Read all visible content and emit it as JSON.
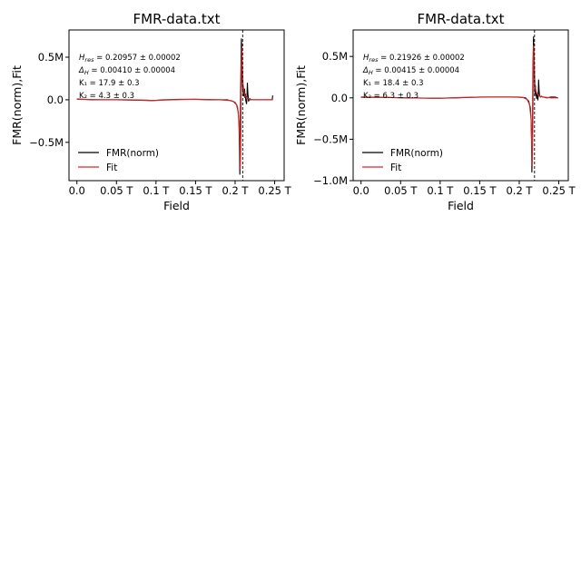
{
  "chart_data": [
    {
      "type": "line",
      "title": "FMR-data.txt",
      "xlabel": "Field",
      "ylabel": "FMR(norm),Fit",
      "xlim": [
        -0.01,
        0.262
      ],
      "ylim": [
        -0.95,
        0.82
      ],
      "x_ticks": [
        0.0,
        0.05,
        0.1,
        0.15,
        0.2,
        0.25
      ],
      "x_tick_labels": [
        "0.0",
        "0.05 T",
        "0.1 T",
        "0.15 T",
        "0.2 T",
        "0.25 T"
      ],
      "y_ticks": [
        0.5,
        0.0,
        -0.5
      ],
      "y_tick_labels": [
        "0.5M",
        "0.0",
        "−0.5M"
      ],
      "vline_x": 0.2096,
      "annotations": [
        "H_res = 0.20957 ± 0.00002",
        "Δ_H = 0.00410 ± 0.00004",
        "K₁ = 17.9 ± 0.3",
        "K₂ = 4.3 ± 0.3"
      ],
      "legend": {
        "placement": "lower-left",
        "entries": [
          "FMR(norm)",
          "Fit"
        ]
      },
      "series": [
        {
          "name": "FMR(norm)",
          "color": "#000000",
          "x": [
            0.0,
            0.02,
            0.05,
            0.08,
            0.095,
            0.11,
            0.13,
            0.15,
            0.17,
            0.19,
            0.198,
            0.202,
            0.204,
            0.205,
            0.2055,
            0.206,
            0.2065,
            0.207,
            0.2075,
            0.208,
            0.2085,
            0.209,
            0.2095,
            0.21,
            0.2105,
            0.211,
            0.212,
            0.2125,
            0.213,
            0.2135,
            0.214,
            0.2145,
            0.215,
            0.2155,
            0.216,
            0.2165,
            0.217,
            0.2175,
            0.218,
            0.2185,
            0.219,
            0.22,
            0.222,
            0.225,
            0.23,
            0.235,
            0.24,
            0.245,
            0.247,
            0.2475
          ],
          "y": [
            0.01,
            0.0,
            0.0,
            -0.005,
            -0.01,
            0.0,
            0.005,
            0.005,
            0.0,
            0.0,
            -0.02,
            -0.06,
            -0.15,
            -0.3,
            -0.6,
            -0.88,
            -0.45,
            0.1,
            0.45,
            0.72,
            0.55,
            0.3,
            0.15,
            0.08,
            0.1,
            0.04,
            0.13,
            0.02,
            0.07,
            -0.01,
            -0.03,
            -0.05,
            0.02,
            0.2,
            0.1,
            0.03,
            -0.02,
            0.01,
            0.0,
            0.0,
            0.01,
            0.0,
            0.0,
            0.0,
            0.0,
            0.0,
            0.0,
            0.0,
            0.0,
            0.05
          ]
        },
        {
          "name": "Fit",
          "color": "#d62728",
          "x": [
            0.0,
            0.03,
            0.06,
            0.09,
            0.095,
            0.12,
            0.15,
            0.18,
            0.195,
            0.2,
            0.203,
            0.205,
            0.206,
            0.2065,
            0.207,
            0.2075,
            0.208,
            0.2085,
            0.209,
            0.2095,
            0.21,
            0.211,
            0.212,
            0.214,
            0.216,
            0.22,
            0.23,
            0.24,
            0.247
          ],
          "y": [
            0.005,
            0.0,
            0.0,
            -0.005,
            -0.01,
            0.0,
            0.005,
            0.0,
            -0.01,
            -0.03,
            -0.08,
            -0.25,
            -0.55,
            -0.82,
            -0.6,
            -0.1,
            0.4,
            0.62,
            0.5,
            0.3,
            0.18,
            0.1,
            0.06,
            0.03,
            0.015,
            0.0,
            0.0,
            0.0,
            0.0
          ]
        }
      ]
    },
    {
      "type": "line",
      "title": "FMR-data.txt",
      "xlabel": "Field",
      "ylabel": "FMR(norm),Fit",
      "xlim": [
        -0.01,
        0.262
      ],
      "ylim": [
        -1.0,
        0.82
      ],
      "x_ticks": [
        0.0,
        0.05,
        0.1,
        0.15,
        0.2,
        0.25
      ],
      "x_tick_labels": [
        "0.0",
        "0.05 T",
        "0.1 T",
        "0.15 T",
        "0.2 T",
        "0.25 T"
      ],
      "y_ticks": [
        0.5,
        0.0,
        -0.5,
        -1.0
      ],
      "y_tick_labels": [
        "0.5M",
        "0.0",
        "−0.5M",
        "−1.0M"
      ],
      "vline_x": 0.2193,
      "annotations": [
        "H_res = 0.21926 ± 0.00002",
        "Δ_H = 0.00415 ± 0.00004",
        "K₁ = 18.4 ± 0.3",
        "K₂ = 6.3 ± 0.3"
      ],
      "legend": {
        "placement": "lower-left",
        "entries": [
          "FMR(norm)",
          "Fit"
        ]
      },
      "series": [
        {
          "name": "FMR(norm)",
          "color": "#000000",
          "x": [
            0.0,
            0.03,
            0.06,
            0.09,
            0.1,
            0.12,
            0.15,
            0.18,
            0.2,
            0.208,
            0.212,
            0.214,
            0.215,
            0.2155,
            0.216,
            0.2165,
            0.217,
            0.2175,
            0.218,
            0.2185,
            0.219,
            0.2195,
            0.22,
            0.2205,
            0.221,
            0.2215,
            0.222,
            0.2225,
            0.223,
            0.2235,
            0.224,
            0.2245,
            0.225,
            0.2255,
            0.226,
            0.227,
            0.228,
            0.23,
            0.235,
            0.24,
            0.245,
            0.249
          ],
          "y": [
            0.01,
            0.005,
            0.0,
            -0.005,
            -0.005,
            0.0,
            0.01,
            0.01,
            0.01,
            0.0,
            -0.04,
            -0.12,
            -0.25,
            -0.5,
            -0.9,
            -0.6,
            0.0,
            0.45,
            0.74,
            0.55,
            0.3,
            0.12,
            0.04,
            0.15,
            0.02,
            0.05,
            -0.01,
            0.04,
            0.01,
            -0.03,
            0.03,
            0.22,
            0.1,
            0.04,
            0.02,
            0.01,
            0.02,
            0.01,
            0.0,
            0.01,
            0.01,
            0.0
          ]
        },
        {
          "name": "Fit",
          "color": "#d62728",
          "x": [
            0.0,
            0.03,
            0.06,
            0.09,
            0.1,
            0.13,
            0.16,
            0.19,
            0.205,
            0.21,
            0.213,
            0.215,
            0.2158,
            0.2163,
            0.2168,
            0.2173,
            0.2178,
            0.2183,
            0.2188,
            0.2193,
            0.2198,
            0.221,
            0.223,
            0.226,
            0.23,
            0.24,
            0.249
          ],
          "y": [
            0.005,
            0.005,
            0.0,
            -0.005,
            -0.005,
            0.005,
            0.01,
            0.01,
            0.005,
            -0.02,
            -0.08,
            -0.25,
            -0.55,
            -0.82,
            -0.6,
            -0.1,
            0.4,
            0.64,
            0.5,
            0.3,
            0.18,
            0.08,
            0.04,
            0.02,
            0.01,
            0.0,
            0.0
          ]
        }
      ]
    }
  ]
}
